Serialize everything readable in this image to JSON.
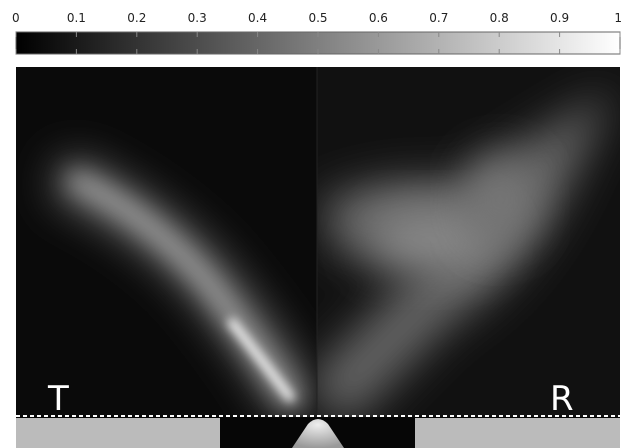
{
  "colorbar": {
    "ticks": [
      0,
      0.1,
      0.2,
      0.3,
      0.4,
      0.5,
      0.6,
      0.7,
      0.8,
      0.9,
      1
    ]
  },
  "panels": [
    {
      "label": "T"
    },
    {
      "label": "R"
    }
  ]
}
